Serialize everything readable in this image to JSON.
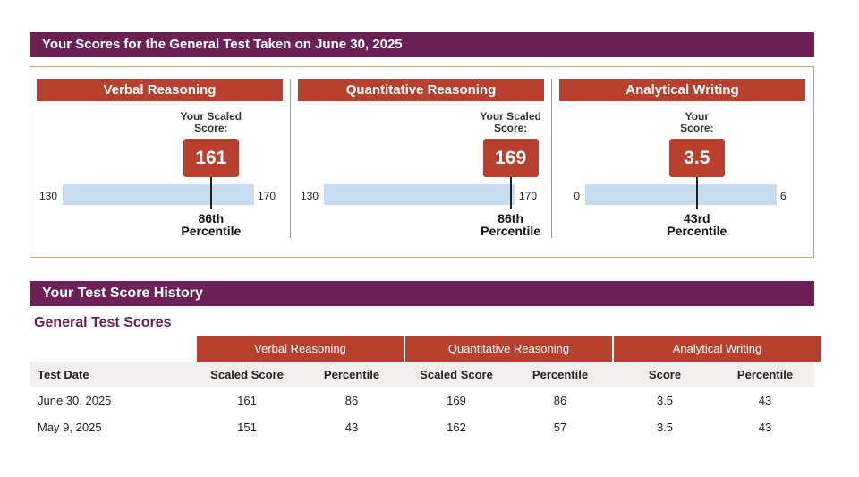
{
  "header": {
    "title": "Your Scores for the General Test Taken on June 30, 2025"
  },
  "panels": [
    {
      "title": "Verbal Reasoning",
      "score_label": [
        "Your Scaled",
        "Score:"
      ],
      "score": 161,
      "min": 130,
      "max": 170,
      "percentile": [
        "86th",
        "Percentile"
      ]
    },
    {
      "title": "Quantitative Reasoning",
      "score_label": [
        "Your Scaled",
        "Score:"
      ],
      "score": 169,
      "min": 130,
      "max": 170,
      "percentile": [
        "86th",
        "Percentile"
      ]
    },
    {
      "title": "Analytical Writing",
      "score_label": [
        "Your",
        "Score:"
      ],
      "score": 3.5,
      "min": 0,
      "max": 6,
      "percentile": [
        "43rd",
        "Percentile"
      ]
    }
  ],
  "history": {
    "title": "Your Test Score History",
    "subtitle": "General Test Scores",
    "table": {
      "groups": [
        "Verbal Reasoning",
        "Quantitative Reasoning",
        "Analytical Writing"
      ],
      "columns": [
        "Test Date",
        "Scaled Score",
        "Percentile",
        "Scaled Score",
        "Percentile",
        "Score",
        "Percentile"
      ],
      "rows": [
        [
          "June 30, 2025",
          161,
          86,
          169,
          86,
          3.5,
          43
        ],
        [
          "May 9, 2025",
          151,
          43,
          162,
          57,
          3.5,
          43
        ]
      ]
    }
  }
}
